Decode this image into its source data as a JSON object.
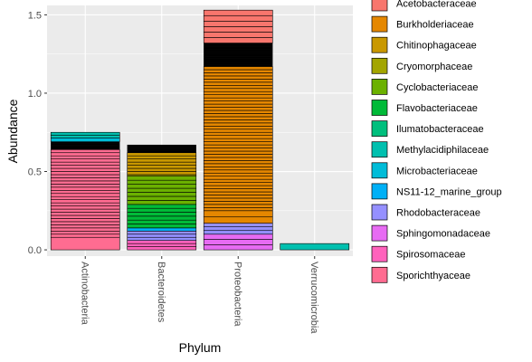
{
  "chart_data": {
    "type": "bar",
    "stacked": true,
    "xlabel": "Phylum",
    "ylabel": "Abundance",
    "ylim": [
      -0.04,
      1.56
    ],
    "yticks": [
      0.0,
      0.5,
      1.0,
      1.5
    ],
    "ytick_labels": [
      "0.0",
      "0.5",
      "1.0",
      "1.5"
    ],
    "categories": [
      "Actinobacteria",
      "Bacteroidetes",
      "Proteobacteria",
      "Verrucomicrobia"
    ],
    "grid": true,
    "legend_position": "right",
    "legend": [
      {
        "name": "Acetobacteraceae",
        "color": "#F8766D"
      },
      {
        "name": "Burkholderiaceae",
        "color": "#E58700"
      },
      {
        "name": "Chitinophagaceae",
        "color": "#C99800"
      },
      {
        "name": "Cryomorphaceae",
        "color": "#A3A500"
      },
      {
        "name": "Cyclobacteriaceae",
        "color": "#6BB100"
      },
      {
        "name": "Flavobacteriaceae",
        "color": "#00BA38"
      },
      {
        "name": "Ilumatobacteraceae",
        "color": "#00BF7D"
      },
      {
        "name": "Methylacidiphilaceae",
        "color": "#00C0AF"
      },
      {
        "name": "Microbacteriaceae",
        "color": "#00BCD8"
      },
      {
        "name": "NS11-12_marine_group",
        "color": "#00B0F6"
      },
      {
        "name": "Rhodobacteraceae",
        "color": "#9590FF"
      },
      {
        "name": "Sphingomonadaceae",
        "color": "#E76BF3"
      },
      {
        "name": "Spirosomaceae",
        "color": "#FF62BC"
      },
      {
        "name": "Sporichthyaceae",
        "color": "#FF6C91"
      }
    ],
    "stacks": [
      {
        "category": "Actinobacteria",
        "segments": [
          {
            "family": "Sporichthyaceae",
            "value": 0.08,
            "count": 1
          },
          {
            "family": "Sporichthyaceae",
            "value": 0.56,
            "count": 28
          },
          {
            "family": "Black",
            "value": 0.05,
            "count": 5
          },
          {
            "family": "Microbacteriaceae",
            "value": 0.025,
            "count": 1
          },
          {
            "family": "Methylacidiphilaceae",
            "value": 0.035,
            "count": 2
          }
        ]
      },
      {
        "category": "Bacteroidetes",
        "segments": [
          {
            "family": "Spirosomaceae",
            "value": 0.06,
            "count": 3
          },
          {
            "family": "Rhodobacteraceae",
            "value": 0.06,
            "count": 3
          },
          {
            "family": "NS11-12_marine_group",
            "value": 0.02,
            "count": 1
          },
          {
            "family": "Flavobacteriaceae",
            "value": 0.15,
            "count": 6
          },
          {
            "family": "Cyclobacteriaceae",
            "value": 0.18,
            "count": 7
          },
          {
            "family": "Cryomorphaceae",
            "value": 0.01,
            "count": 1
          },
          {
            "family": "Chitinophagaceae",
            "value": 0.14,
            "count": 7
          },
          {
            "family": "Black",
            "value": 0.05,
            "count": 4
          }
        ]
      },
      {
        "category": "Proteobacteria",
        "segments": [
          {
            "family": "Sphingomonadaceae",
            "value": 0.1,
            "count": 3
          },
          {
            "family": "Rhodobacteraceae",
            "value": 0.07,
            "count": 3
          },
          {
            "family": "Burkholderiaceae",
            "value": 0.08,
            "count": 2
          },
          {
            "family": "Burkholderiaceae",
            "value": 0.92,
            "count": 46
          },
          {
            "family": "Black",
            "value": 0.15,
            "count": 12
          },
          {
            "family": "Acetobacteraceae",
            "value": 0.21,
            "count": 6
          }
        ]
      },
      {
        "category": "Verrucomicrobia",
        "segments": [
          {
            "family": "Methylacidiphilaceae",
            "value": 0.04,
            "count": 1
          }
        ]
      }
    ]
  }
}
